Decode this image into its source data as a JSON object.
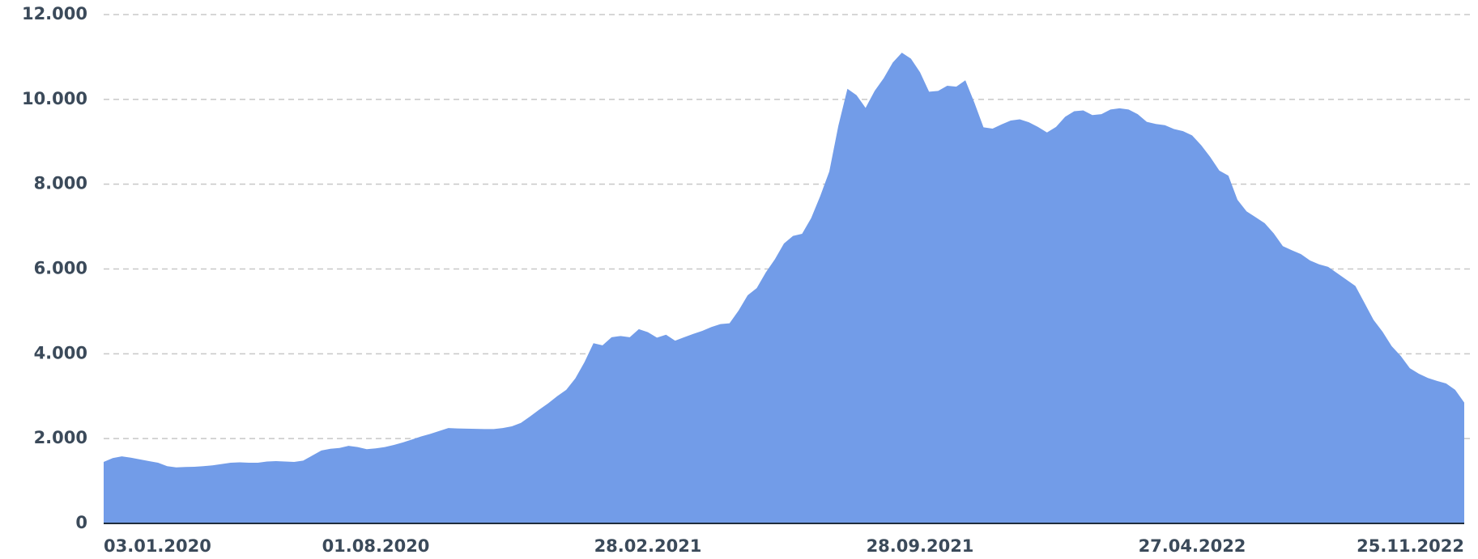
{
  "chart_data": {
    "type": "area",
    "color": "#729ce8",
    "grid": true,
    "categories": [
      "03.01.2020",
      null,
      null,
      null,
      null,
      null,
      null,
      null,
      null,
      null,
      null,
      null,
      null,
      null,
      null,
      null,
      null,
      null,
      null,
      null,
      null,
      null,
      null,
      null,
      null,
      null,
      null,
      null,
      null,
      null,
      "01.08.2020",
      null,
      null,
      null,
      null,
      null,
      null,
      null,
      null,
      null,
      null,
      null,
      null,
      null,
      null,
      null,
      null,
      null,
      null,
      null,
      null,
      null,
      null,
      null,
      null,
      null,
      null,
      null,
      null,
      null,
      "28.02.2021",
      null,
      null,
      null,
      null,
      null,
      null,
      null,
      null,
      null,
      null,
      null,
      null,
      null,
      null,
      null,
      null,
      null,
      null,
      null,
      null,
      null,
      null,
      null,
      null,
      null,
      null,
      null,
      null,
      null,
      "28.09.2021",
      null,
      null,
      null,
      null,
      null,
      null,
      null,
      null,
      null,
      null,
      null,
      null,
      null,
      null,
      null,
      null,
      null,
      null,
      null,
      null,
      null,
      null,
      null,
      null,
      null,
      null,
      null,
      null,
      null,
      "27.04.2022",
      null,
      null,
      null,
      null,
      null,
      null,
      null,
      null,
      null,
      null,
      null,
      null,
      null,
      null,
      null,
      null,
      null,
      null,
      null,
      null,
      null,
      null,
      null,
      null,
      null,
      null,
      null,
      null,
      null,
      "25.11.2022"
    ],
    "values": [
      1450,
      1540,
      1580,
      1550,
      1510,
      1470,
      1430,
      1350,
      1320,
      1330,
      1335,
      1350,
      1370,
      1400,
      1430,
      1440,
      1430,
      1430,
      1460,
      1470,
      1460,
      1450,
      1480,
      1600,
      1720,
      1760,
      1780,
      1830,
      1800,
      1750,
      1770,
      1800,
      1850,
      1910,
      1980,
      2050,
      2110,
      2180,
      2250,
      2240,
      2235,
      2230,
      2225,
      2225,
      2250,
      2290,
      2370,
      2520,
      2680,
      2830,
      3000,
      3150,
      3420,
      3800,
      4250,
      4200,
      4390,
      4420,
      4390,
      4580,
      4510,
      4380,
      4450,
      4310,
      4390,
      4470,
      4540,
      4630,
      4700,
      4720,
      5020,
      5380,
      5550,
      5920,
      6230,
      6600,
      6780,
      6830,
      7200,
      7720,
      8300,
      9380,
      10250,
      10100,
      9800,
      10200,
      10500,
      10870,
      11100,
      10960,
      10640,
      10180,
      10200,
      10320,
      10300,
      10450,
      9920,
      9340,
      9310,
      9410,
      9500,
      9530,
      9460,
      9350,
      9220,
      9350,
      9590,
      9720,
      9740,
      9630,
      9650,
      9760,
      9790,
      9760,
      9650,
      9470,
      9420,
      9390,
      9300,
      9250,
      9150,
      8920,
      8640,
      8320,
      8200,
      7630,
      7360,
      7220,
      7080,
      6840,
      6540,
      6440,
      6350,
      6200,
      6110,
      6050,
      5900,
      5750,
      5600,
      5200,
      4800,
      4520,
      4180,
      3950,
      3660,
      3530,
      3430,
      3360,
      3300,
      3150,
      2850
    ],
    "ylim": [
      0,
      12000
    ],
    "yticks": [
      0,
      {
        "value": 2000,
        "label": "2.000"
      },
      {
        "value": 4000,
        "label": "4.000"
      },
      {
        "value": 6000,
        "label": "6.000"
      },
      {
        "value": 8000,
        "label": "8.000"
      },
      {
        "value": 10000,
        "label": "10.000"
      },
      {
        "value": 12000,
        "label": "12.000"
      }
    ]
  }
}
